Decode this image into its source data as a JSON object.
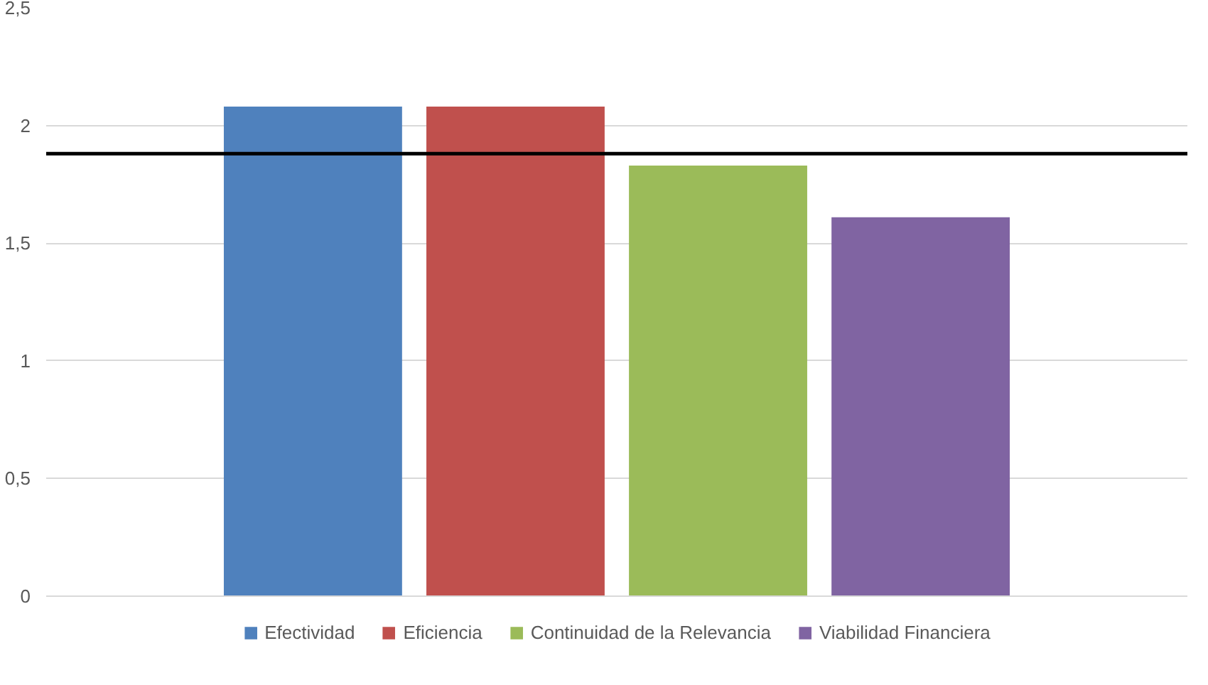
{
  "chart_data": {
    "type": "bar",
    "categories": [
      null
    ],
    "series": [
      {
        "name": "Efectividad",
        "color": "#4f81bd",
        "values": [
          2.08
        ]
      },
      {
        "name": "Eficiencia",
        "color": "#c0504d",
        "values": [
          2.08
        ]
      },
      {
        "name": "Continuidad de la Relevancia",
        "color": "#9bbb59",
        "values": [
          1.83
        ]
      },
      {
        "name": "Viabilidad Financiera",
        "color": "#8064a2",
        "values": [
          1.61
        ]
      }
    ],
    "ylim": [
      0,
      2.5
    ],
    "yticks": [
      0,
      {
        "value": 0.5,
        "label": "0,5"
      },
      1,
      {
        "value": 1.5,
        "label": "1,5"
      },
      2,
      {
        "value": 2.5,
        "label": "2,5"
      }
    ],
    "ref_lines": [
      {
        "axis": "y",
        "value": 1.88,
        "color": "#000000"
      }
    ],
    "grid": "y",
    "legend": "bottom",
    "tick_labels": "y"
  }
}
